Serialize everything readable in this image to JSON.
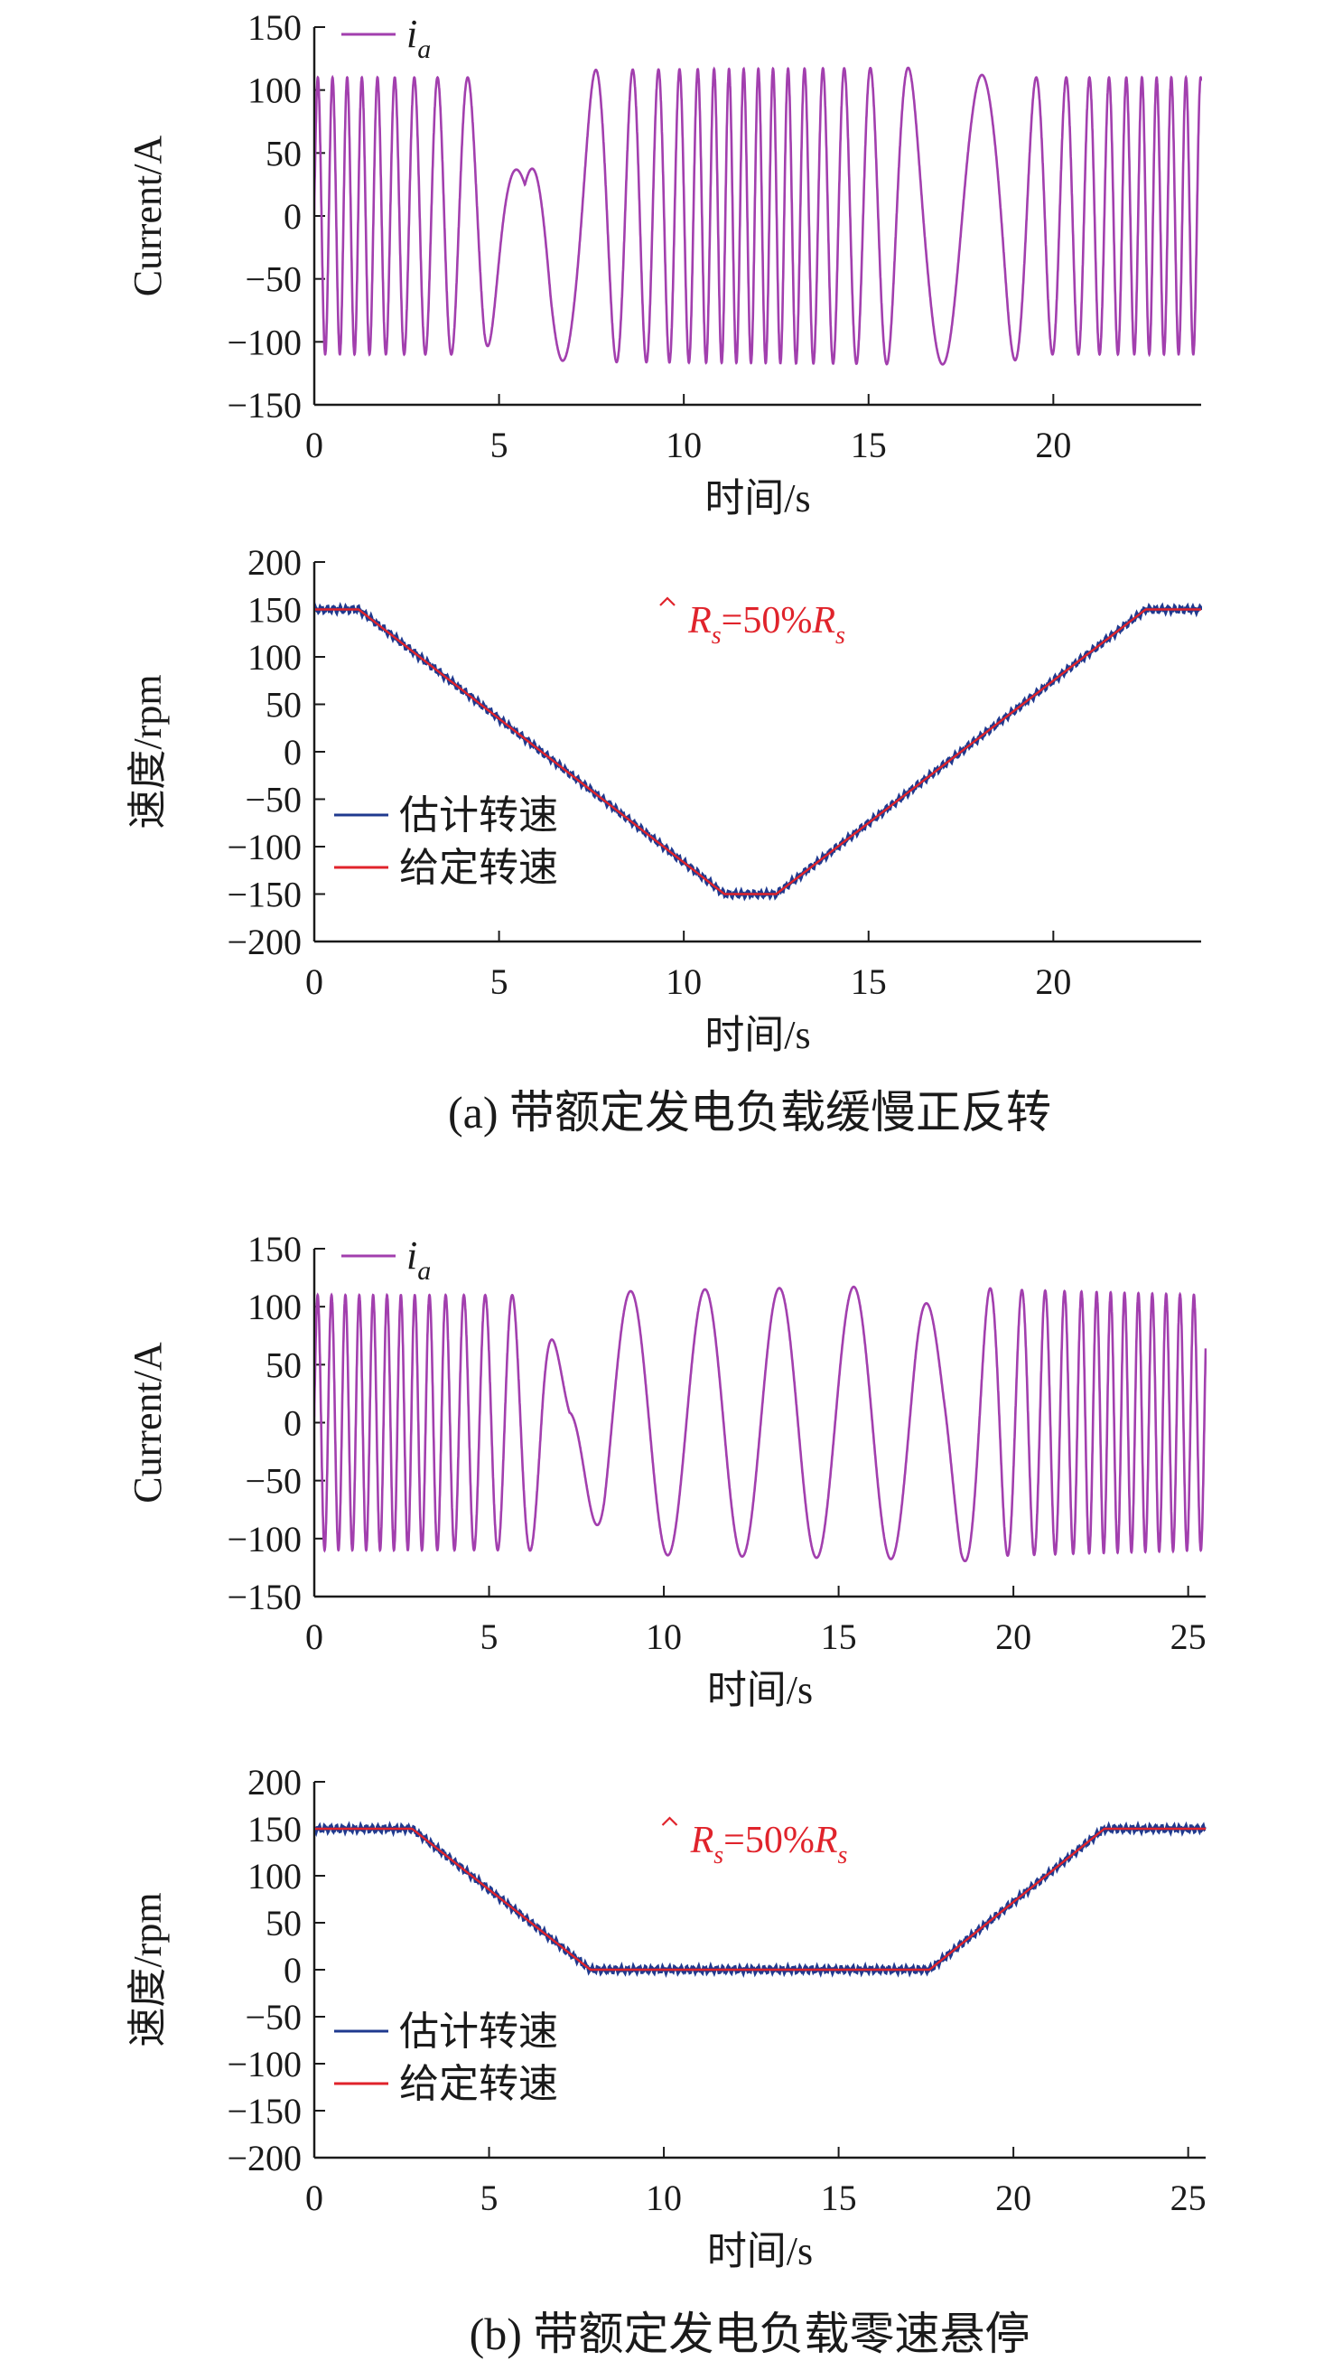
{
  "figure": {
    "caption_a": "(a) 带额定发电负载缓慢正反转",
    "caption_b": "(b) 带额定发电负载零速悬停",
    "annotation": {
      "hat": "R",
      "sub": "s",
      "eq": "=50%",
      "R": "R",
      "sub2": "s"
    },
    "colors": {
      "current": "#a23fae",
      "estimated": "#1f3a8f",
      "reference": "#e0232b",
      "axis": "#1a1a1a"
    }
  },
  "chart_data": [
    {
      "type": "line",
      "panel": "a-current",
      "xlabel": "时间/s",
      "ylabel": "Current/A",
      "xlim": [
        0,
        24
      ],
      "ylim": [
        -150,
        150
      ],
      "xticks": [
        0,
        5,
        10,
        15,
        20
      ],
      "yticks": [
        -150,
        -100,
        -50,
        0,
        50,
        100,
        150
      ],
      "legend": {
        "position": "top-left"
      },
      "series": [
        {
          "name": "i_a",
          "name_main": "i",
          "name_sub": "a",
          "color": "#a23fae",
          "description": "phase current oscillation; envelope and frequency vary with speed",
          "envelope_t": [
            0,
            4.3,
            4.6,
            5.7,
            6.4,
            6.7,
            7.5,
            17.5,
            17.8,
            18.2,
            18.8,
            19.2,
            24
          ],
          "envelope_amp": [
            110,
            110,
            112,
            25,
            112,
            115,
            116,
            118,
            112,
            112,
            118,
            110,
            110
          ],
          "speed_profile_rpm_t": [
            0,
            1.2,
            11.1,
            12.5,
            22.5,
            24
          ],
          "speed_profile_rpm": [
            150,
            150,
            -150,
            -150,
            150,
            150
          ]
        }
      ]
    },
    {
      "type": "line",
      "panel": "a-speed",
      "xlabel": "时间/s",
      "ylabel": "速度/rpm",
      "xlim": [
        0,
        24
      ],
      "ylim": [
        -200,
        200
      ],
      "xticks": [
        0,
        5,
        10,
        15,
        20
      ],
      "yticks": [
        -200,
        -150,
        -100,
        -50,
        0,
        50,
        100,
        150,
        200
      ],
      "legend": {
        "position": "bottom-left"
      },
      "series": [
        {
          "name": "估计转速",
          "color": "#1f3a8f",
          "x": [
            0,
            1.2,
            11.1,
            12.5,
            22.5,
            24
          ],
          "y": [
            150,
            150,
            -150,
            -150,
            150,
            150
          ]
        },
        {
          "name": "给定转速",
          "color": "#e0232b",
          "x": [
            0,
            1.2,
            11.1,
            12.5,
            22.5,
            24
          ],
          "y": [
            150,
            150,
            -150,
            -150,
            150,
            150
          ]
        }
      ]
    },
    {
      "type": "line",
      "panel": "b-current",
      "xlabel": "时间/s",
      "ylabel": "Current/A",
      "xlim": [
        0,
        25.5
      ],
      "ylim": [
        -150,
        150
      ],
      "xticks": [
        0,
        5,
        10,
        15,
        20,
        25
      ],
      "yticks": [
        -150,
        -100,
        -50,
        0,
        50,
        100,
        150
      ],
      "legend": {
        "position": "top-left"
      },
      "series": [
        {
          "name": "i_a",
          "name_main": "i",
          "name_sub": "a",
          "color": "#a23fae",
          "description": "phase current; slow oscillation during zero-speed hover",
          "envelope_t": [
            0,
            6.1,
            6.5,
            7.3,
            8.3,
            9.4,
            17.2,
            18.0,
            18.5,
            19.5,
            25.5
          ],
          "envelope_amp": [
            110,
            110,
            112,
            20,
            112,
            114,
            118,
            82,
            120,
            115,
            110
          ],
          "speed_profile_rpm_t": [
            0,
            2.8,
            7.9,
            17.6,
            22.6,
            25.5
          ],
          "speed_profile_rpm": [
            150,
            150,
            0,
            0,
            150,
            150
          ]
        }
      ]
    },
    {
      "type": "line",
      "panel": "b-speed",
      "xlabel": "时间/s",
      "ylabel": "速度/rpm",
      "xlim": [
        0,
        25.5
      ],
      "ylim": [
        -200,
        200
      ],
      "xticks": [
        0,
        5,
        10,
        15,
        20,
        25
      ],
      "yticks": [
        -200,
        -150,
        -100,
        -50,
        0,
        50,
        100,
        150,
        200
      ],
      "legend": {
        "position": "bottom-left"
      },
      "series": [
        {
          "name": "估计转速",
          "color": "#1f3a8f",
          "x": [
            0,
            2.8,
            7.9,
            17.6,
            22.6,
            25.5
          ],
          "y": [
            150,
            150,
            0,
            0,
            150,
            150
          ]
        },
        {
          "name": "给定转速",
          "color": "#e0232b",
          "x": [
            0,
            2.8,
            7.9,
            17.6,
            22.6,
            25.5
          ],
          "y": [
            150,
            150,
            0,
            0,
            150,
            150
          ]
        }
      ]
    }
  ]
}
